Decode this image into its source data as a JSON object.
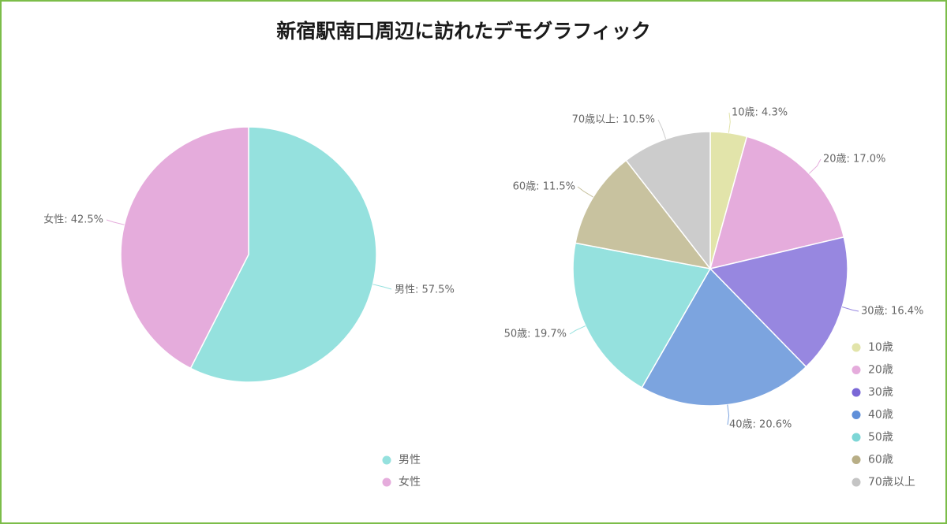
{
  "title": "新宿駅南口周辺に訪れたデモグラフィック",
  "chart_data": [
    {
      "type": "pie",
      "categories": [
        "男性",
        "女性"
      ],
      "values": [
        57.5,
        42.5
      ],
      "labels": [
        "男性: 57.5%",
        "女性: 42.5%"
      ],
      "colors": [
        "#95e1de",
        "#e5acdc"
      ],
      "legend": [
        "男性",
        "女性"
      ],
      "legend_placement": "bottom",
      "legend_colors": [
        "#95e1de",
        "#e5acdc"
      ]
    },
    {
      "type": "pie",
      "categories": [
        "10歳",
        "20歳",
        "30歳",
        "40歳",
        "50歳",
        "60歳",
        "70歳以上"
      ],
      "values": [
        4.3,
        17.0,
        16.4,
        20.6,
        19.7,
        11.5,
        10.5
      ],
      "labels": [
        "10歳: 4.3%",
        "20歳: 17.0%",
        "30歳: 16.4%",
        "40歳: 20.6%",
        "50歳: 19.7%",
        "60歳: 11.5%",
        "70歳以上: 10.5%"
      ],
      "colors": [
        "#e2e4aa",
        "#e5acdc",
        "#9787e0",
        "#7ca4df",
        "#95e1de",
        "#c8c29f",
        "#cccccc"
      ],
      "legend": [
        "10歳",
        "20歳",
        "30歳",
        "40歳",
        "50歳",
        "60歳",
        "70歳以上"
      ],
      "legend_placement": "bottom-right",
      "legend_colors": [
        "#e2e4aa",
        "#e5acdc",
        "#7a67d6",
        "#5f8fd9",
        "#7dd6d6",
        "#b8ae86",
        "#c4c4c4"
      ]
    }
  ]
}
